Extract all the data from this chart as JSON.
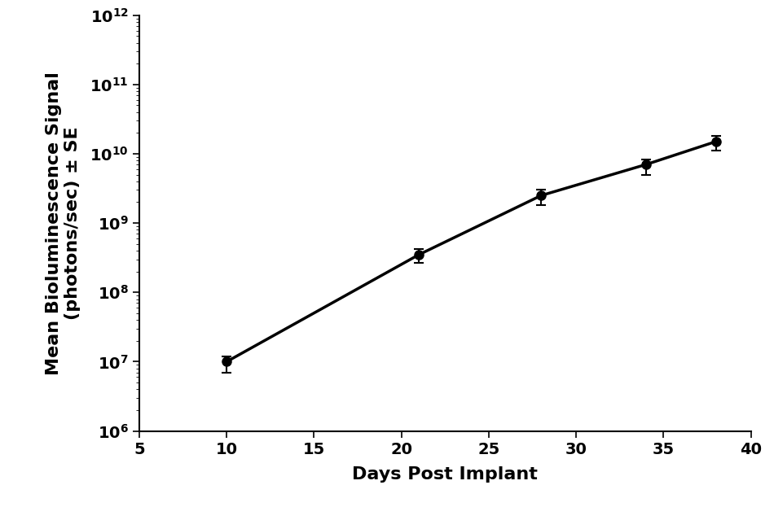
{
  "x": [
    10,
    21,
    28,
    34,
    38
  ],
  "y": [
    10000000.0,
    350000000.0,
    2500000000.0,
    7000000000.0,
    15000000000.0
  ],
  "y_err_lower": [
    3000000.0,
    80000000.0,
    700000000.0,
    2000000000.0,
    4000000000.0
  ],
  "y_err_upper": [
    2000000.0,
    70000000.0,
    500000000.0,
    1200000000.0,
    3000000000.0
  ],
  "xlim": [
    5,
    40
  ],
  "ylim": [
    1000000.0,
    1000000000000.0
  ],
  "xticks": [
    5,
    10,
    15,
    20,
    25,
    30,
    35,
    40
  ],
  "xlabel": "Days Post Implant",
  "ylabel": "Mean Bioluminescence Signal\n(photons/sec) ± SE",
  "line_color": "#000000",
  "marker_color": "#000000",
  "marker_size": 8,
  "line_width": 2.5,
  "capsize": 4,
  "background_color": "#ffffff",
  "tick_labelsize": 14,
  "axis_labelsize": 16
}
